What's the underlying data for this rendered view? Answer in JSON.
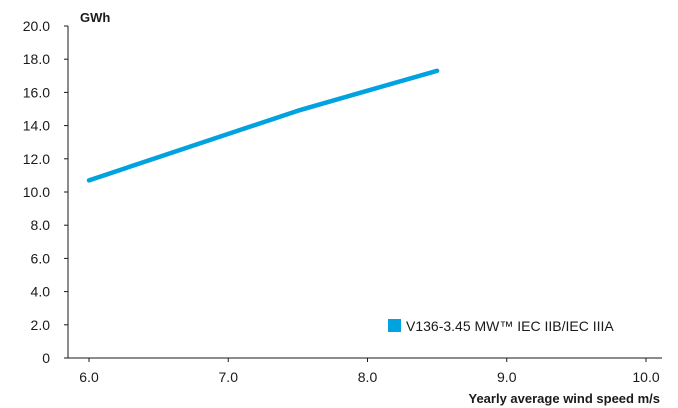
{
  "chart_data": {
    "type": "line",
    "ylabel": "GWh",
    "xlabel": "Yearly average wind speed m/s",
    "xlim": [
      6.0,
      10.0
    ],
    "ylim": [
      0,
      20.0
    ],
    "x_ticks": [
      "6.0",
      "7.0",
      "8.0",
      "9.0",
      "10.0"
    ],
    "y_ticks": [
      "0",
      "2.0",
      "4.0",
      "6.0",
      "8.0",
      "10.0",
      "12.0",
      "14.0",
      "16.0",
      "18.0",
      "20.0"
    ],
    "grid": false,
    "legend_position": "bottom-right",
    "series": [
      {
        "name": "V136-3.45 MW™ IEC IIB/IEC IIIA",
        "color": "#00a3e0",
        "x": [
          6.0,
          6.5,
          7.0,
          7.5,
          8.0,
          8.5
        ],
        "y": [
          10.7,
          12.1,
          13.5,
          14.9,
          16.1,
          17.3
        ]
      }
    ]
  }
}
